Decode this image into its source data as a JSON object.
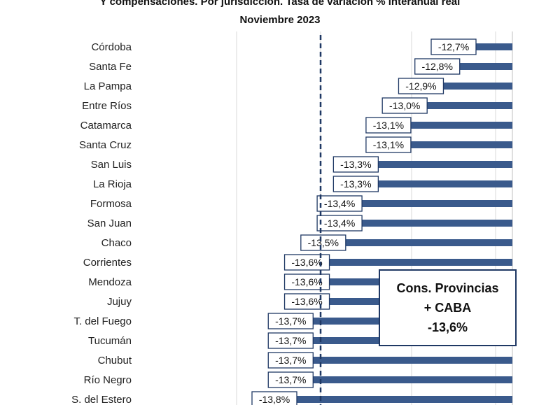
{
  "chart_data": {
    "type": "bar",
    "orientation": "horizontal",
    "title_line1": "Y compensaciones. Por jurisdicción. Tasa de variación % interanual real",
    "title_line2": "Noviembre 2023",
    "categories": [
      "Córdoba",
      "Santa Fe",
      "La Pampa",
      "Entre Ríos",
      "Catamarca",
      "Santa Cruz",
      "San Luis",
      "La Rioja",
      "Formosa",
      "San Juan",
      "Chaco",
      "Corrientes",
      "Mendoza",
      "Jujuy",
      "T. del Fuego",
      "Tucumán",
      "Chubut",
      "Río Negro",
      "S. del Estero"
    ],
    "values": [
      -12.7,
      -12.8,
      -12.9,
      -13.0,
      -13.1,
      -13.1,
      -13.3,
      -13.3,
      -13.4,
      -13.4,
      -13.5,
      -13.6,
      -13.6,
      -13.6,
      -13.7,
      -13.7,
      -13.7,
      -13.7,
      -13.8
    ],
    "value_labels": [
      "-12,7%",
      "-12,8%",
      "-12,9%",
      "-13,0%",
      "-13,1%",
      "-13,1%",
      "-13,3%",
      "-13,3%",
      "-13,4%",
      "-13,4%",
      "-13,5%",
      "-13,6%",
      "-13,6%",
      "-13,6%",
      "-13,7%",
      "-13,7%",
      "-13,7%",
      "-13,7%",
      "-13,8%"
    ],
    "reference_line": {
      "value": -13.6,
      "style": "dashed"
    },
    "callout": {
      "line1": "Cons. Provincias",
      "line2": "+ CABA",
      "line3": "-13,6%"
    },
    "bar_color": "#3a5a8c",
    "label_border_color": "#1f3864",
    "grid": true
  }
}
